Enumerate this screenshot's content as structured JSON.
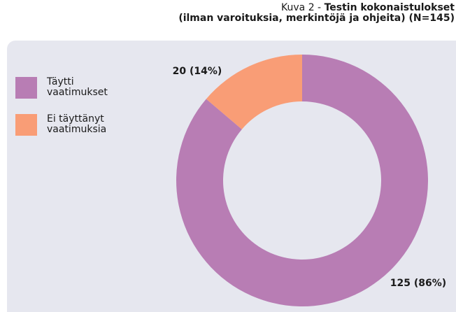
{
  "chart_data": {
    "type": "donut",
    "caption": "Kuva 2 -",
    "title": "Testin kokonaistulokset",
    "subtitle": "(ilman varoituksia, merkintöjä ja ohjeita) (N=145)",
    "categories": [
      "Täytti vaatimukset",
      "Ei täyttänyt vaatimuksia"
    ],
    "values": [
      125,
      20
    ],
    "value_labels": [
      "125 (86%)",
      "20 (14%)"
    ],
    "colors": [
      "#b87db4",
      "#f99d76"
    ],
    "legend": "left"
  }
}
